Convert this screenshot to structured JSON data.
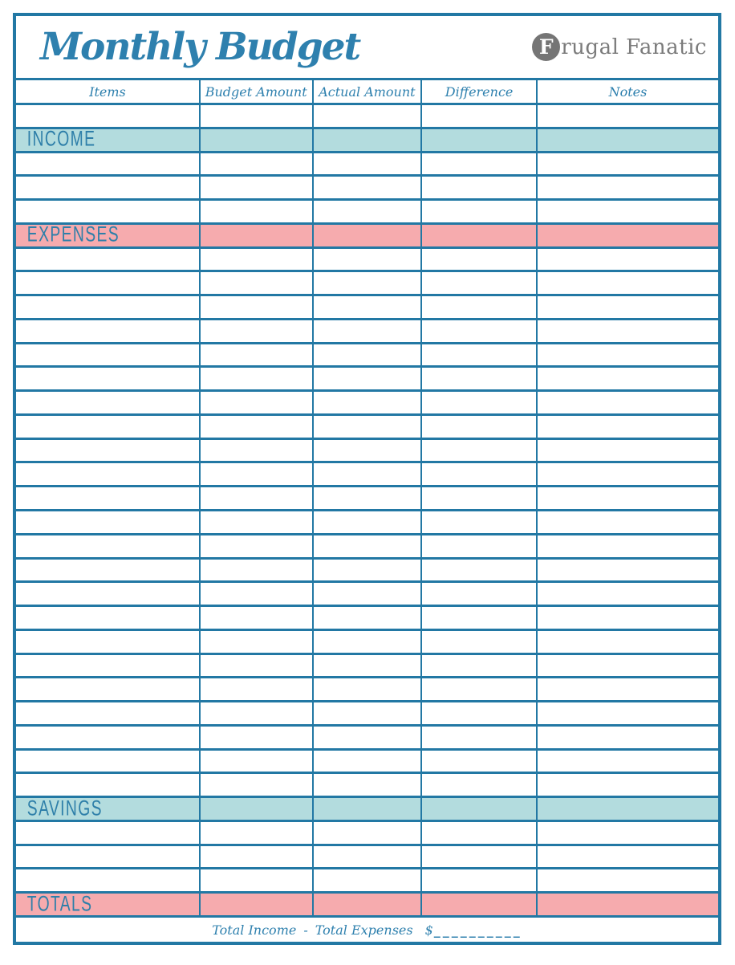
{
  "page": {
    "title": "Monthly Budget",
    "logo": {
      "initial": "F",
      "rest": "rugal Fanatic"
    }
  },
  "table": {
    "columns": [
      "Items",
      "Budget Amount",
      "Actual Amount",
      "Difference",
      "Notes"
    ],
    "layout_rows": [
      {
        "type": "blank",
        "count": 1
      },
      {
        "type": "section",
        "label": "INCOME",
        "band": "blue"
      },
      {
        "type": "blank",
        "count": 3
      },
      {
        "type": "section",
        "label": "EXPENSES",
        "band": "pink"
      },
      {
        "type": "blank",
        "count": 23
      },
      {
        "type": "section",
        "label": "SAVINGS",
        "band": "blue"
      },
      {
        "type": "blank",
        "count": 3
      },
      {
        "type": "section",
        "label": "TOTALS",
        "band": "pink"
      }
    ]
  },
  "footer": {
    "left_term": "Total Income",
    "operator": "-",
    "right_term": "Total Expenses",
    "currency_symbol": "$",
    "blank": "__________"
  },
  "colors": {
    "grid_line": "#2278a4",
    "heading_text": "#2e80ae",
    "income_savings_band": "#b3dcde",
    "expenses_totals_band": "#f6abae",
    "logo_gray": "#7b7b7b"
  }
}
